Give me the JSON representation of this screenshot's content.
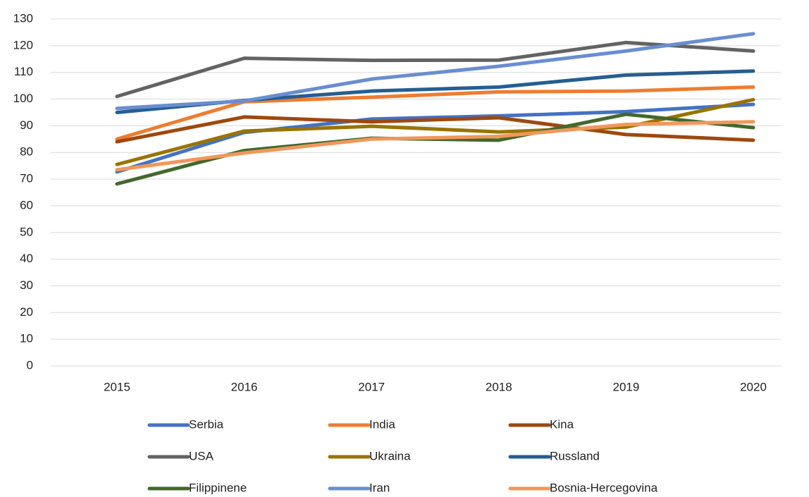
{
  "chart_data": {
    "type": "line",
    "categories": [
      "2015",
      "2016",
      "2017",
      "2018",
      "2019",
      "2020"
    ],
    "ylim": [
      0,
      130
    ],
    "yticks": [
      0,
      10,
      20,
      30,
      40,
      50,
      60,
      70,
      80,
      90,
      100,
      110,
      120,
      130
    ],
    "grid": true,
    "series": [
      {
        "name": "Serbia",
        "color": "#4472c4",
        "values": [
          72.7,
          87.5,
          92.5,
          93.7,
          95.3,
          98
        ]
      },
      {
        "name": "India",
        "color": "#ed7d31",
        "values": [
          85,
          99,
          100.7,
          102.7,
          103,
          104.5
        ]
      },
      {
        "name": "Kina",
        "color": "#9e480e",
        "values": [
          84,
          93.3,
          91.5,
          93,
          86.7,
          84.6
        ]
      },
      {
        "name": "USA",
        "color": "#636363",
        "values": [
          101,
          115.3,
          114.5,
          114.6,
          121.2,
          118
        ]
      },
      {
        "name": "Ukraina",
        "color": "#997300",
        "values": [
          75.5,
          88,
          89.8,
          87.7,
          89.5,
          99.8
        ]
      },
      {
        "name": "Russland",
        "color": "#255e91",
        "values": [
          95,
          99.5,
          103,
          104.5,
          109,
          110.5
        ]
      },
      {
        "name": "Filippinene",
        "color": "#43682b",
        "values": [
          68.2,
          80.7,
          85.3,
          84.6,
          94.3,
          89.3
        ]
      },
      {
        "name": "Iran",
        "color": "#698ed0",
        "values": [
          96.5,
          99.3,
          107.5,
          112.3,
          118,
          124.5
        ]
      },
      {
        "name": "Bosnia-Hercegovina",
        "color": "#f1975a",
        "values": [
          73.5,
          79.8,
          85,
          86,
          90.5,
          91.5
        ]
      }
    ]
  }
}
